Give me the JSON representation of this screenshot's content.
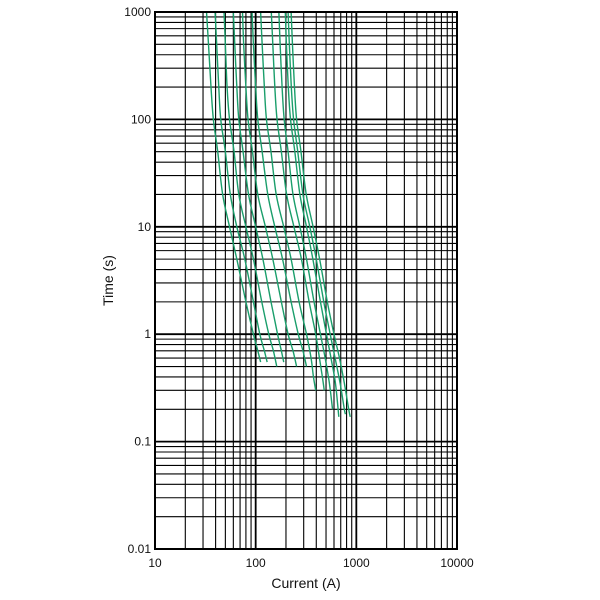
{
  "chart_data": {
    "type": "line",
    "title": "",
    "xlabel": "Current (A)",
    "ylabel": "Time (s)",
    "xscale": "log",
    "yscale": "log",
    "xlim": [
      10,
      10000
    ],
    "ylim": [
      0.01,
      1000
    ],
    "xticks": [
      10,
      100,
      1000,
      10000
    ],
    "xtick_labels": [
      "10",
      "100",
      "1000",
      "10000"
    ],
    "yticks": [
      0.01,
      0.1,
      1,
      10,
      100,
      1000
    ],
    "ytick_labels": [
      "0.01",
      "0.1",
      "1",
      "10",
      "100",
      "1000"
    ],
    "grid": true,
    "legend": "none",
    "series_color": "#1a9e6b",
    "series": [
      {
        "points": [
          [
            32.5,
            1000
          ],
          [
            34,
            500
          ],
          [
            36,
            200
          ],
          [
            38,
            100
          ],
          [
            42,
            50
          ],
          [
            47,
            20
          ],
          [
            55,
            10
          ],
          [
            65,
            5
          ],
          [
            80,
            2
          ],
          [
            95,
            1
          ],
          [
            105,
            0.7
          ],
          [
            112,
            0.55
          ]
        ]
      },
      {
        "points": [
          [
            39.5,
            1000
          ],
          [
            41,
            500
          ],
          [
            43,
            200
          ],
          [
            45,
            100
          ],
          [
            50,
            50
          ],
          [
            56,
            20
          ],
          [
            65,
            10
          ],
          [
            78,
            5
          ],
          [
            95,
            2
          ],
          [
            110,
            1
          ],
          [
            122,
            0.7
          ],
          [
            130,
            0.55
          ]
        ]
      },
      {
        "points": [
          [
            48.5,
            1000
          ],
          [
            50,
            500
          ],
          [
            52,
            200
          ],
          [
            55,
            100
          ],
          [
            61,
            50
          ],
          [
            68,
            20
          ],
          [
            80,
            10
          ],
          [
            95,
            5
          ],
          [
            115,
            2
          ],
          [
            135,
            1
          ],
          [
            150,
            0.7
          ],
          [
            162,
            0.5
          ]
        ]
      },
      {
        "points": [
          [
            60,
            1000
          ],
          [
            62,
            500
          ],
          [
            65,
            200
          ],
          [
            68,
            100
          ],
          [
            75,
            50
          ],
          [
            85,
            20
          ],
          [
            100,
            10
          ],
          [
            118,
            5
          ],
          [
            142,
            2
          ],
          [
            165,
            1
          ],
          [
            180,
            0.7
          ],
          [
            190,
            0.55
          ]
        ]
      },
      {
        "points": [
          [
            74,
            1000
          ],
          [
            76,
            500
          ],
          [
            80,
            200
          ],
          [
            84,
            100
          ],
          [
            93,
            50
          ],
          [
            105,
            20
          ],
          [
            125,
            10
          ],
          [
            148,
            5
          ],
          [
            180,
            2
          ],
          [
            210,
            1
          ],
          [
            235,
            0.7
          ],
          [
            255,
            0.5
          ]
        ]
      },
      {
        "points": [
          [
            92,
            1000
          ],
          [
            95,
            500
          ],
          [
            100,
            200
          ],
          [
            105,
            100
          ],
          [
            116,
            50
          ],
          [
            132,
            20
          ],
          [
            155,
            10
          ],
          [
            185,
            5
          ],
          [
            225,
            2
          ],
          [
            265,
            1
          ],
          [
            295,
            0.7
          ],
          [
            320,
            0.5
          ]
        ]
      },
      {
        "points": [
          [
            112,
            1000
          ],
          [
            116,
            500
          ],
          [
            122,
            200
          ],
          [
            128,
            100
          ],
          [
            142,
            50
          ],
          [
            160,
            20
          ],
          [
            190,
            10
          ],
          [
            225,
            5
          ],
          [
            270,
            2
          ],
          [
            320,
            1
          ],
          [
            355,
            0.6
          ],
          [
            375,
            0.4
          ],
          [
            395,
            0.3
          ]
        ]
      },
      {
        "points": [
          [
            143,
            1000
          ],
          [
            148,
            500
          ],
          [
            155,
            200
          ],
          [
            163,
            100
          ],
          [
            180,
            50
          ],
          [
            203,
            20
          ],
          [
            240,
            10
          ],
          [
            285,
            5
          ],
          [
            340,
            2
          ],
          [
            395,
            1
          ],
          [
            430,
            0.6
          ],
          [
            460,
            0.4
          ],
          [
            480,
            0.3
          ]
        ]
      },
      {
        "points": [
          [
            170,
            1000
          ],
          [
            175,
            500
          ],
          [
            183,
            200
          ],
          [
            192,
            100
          ],
          [
            210,
            50
          ],
          [
            235,
            20
          ],
          [
            275,
            10
          ],
          [
            320,
            5
          ],
          [
            380,
            2
          ],
          [
            440,
            1
          ],
          [
            490,
            0.6
          ],
          [
            540,
            0.35
          ],
          [
            580,
            0.2
          ]
        ]
      },
      {
        "points": [
          [
            197,
            1000
          ],
          [
            202,
            500
          ],
          [
            211,
            200
          ],
          [
            222,
            100
          ],
          [
            245,
            50
          ],
          [
            275,
            20
          ],
          [
            320,
            10
          ],
          [
            370,
            5
          ],
          [
            440,
            2
          ],
          [
            505,
            1
          ],
          [
            560,
            0.6
          ],
          [
            620,
            0.35
          ],
          [
            670,
            0.17
          ]
        ]
      },
      {
        "points": [
          [
            210,
            1000
          ],
          [
            216,
            500
          ],
          [
            226,
            200
          ],
          [
            238,
            100
          ],
          [
            262,
            50
          ],
          [
            295,
            20
          ],
          [
            345,
            10
          ],
          [
            400,
            5
          ],
          [
            475,
            2
          ],
          [
            550,
            1
          ],
          [
            615,
            0.6
          ],
          [
            690,
            0.35
          ],
          [
            760,
            0.2
          ],
          [
            780,
            0.18
          ]
        ]
      },
      {
        "points": [
          [
            225,
            1000
          ],
          [
            232,
            500
          ],
          [
            243,
            200
          ],
          [
            255,
            100
          ],
          [
            282,
            50
          ],
          [
            318,
            20
          ],
          [
            372,
            10
          ],
          [
            432,
            5
          ],
          [
            515,
            2
          ],
          [
            600,
            1
          ],
          [
            680,
            0.6
          ],
          [
            760,
            0.35
          ],
          [
            840,
            0.2
          ],
          [
            870,
            0.17
          ]
        ]
      }
    ]
  }
}
